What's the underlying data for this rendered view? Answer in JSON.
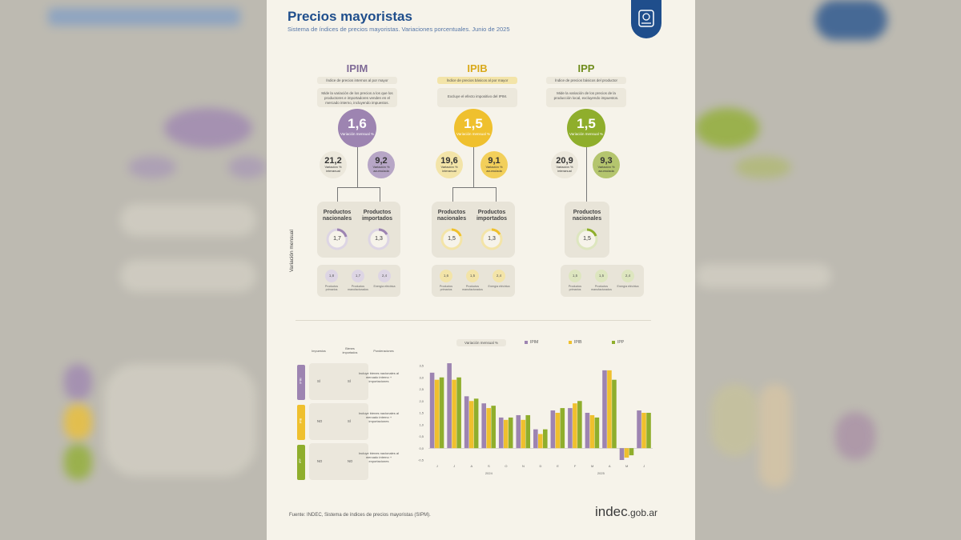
{
  "header": {
    "title": "Precios mayoristas",
    "subtitle": "Sistema de índices de precios mayoristas. Variaciones porcentuales. Junio de 2025"
  },
  "colors": {
    "ipim": "#9d84b1",
    "ipib": "#efc02e",
    "ipp": "#8fae2c",
    "brand": "#1f4e8c"
  },
  "indices": [
    {
      "name": "IPIM",
      "sub": "Índice de precios internos al por mayor",
      "desc": "Mide la variación de los precios a los que los productores e importadores venden en el mercado interno, incluyendo impuestos.",
      "monthly": "1,6",
      "monthly_label": "Variación mensual %",
      "yoy": "21,2",
      "yoy_label": "Variación % interanual",
      "acc": "9,2",
      "acc_label": "Variación % acumulada",
      "products": [
        {
          "label": "Productos nacionales",
          "value": "1,7"
        },
        {
          "label": "Productos importados",
          "value": "1,3"
        }
      ],
      "sub_items": [
        {
          "value": "1,8",
          "label": "Productos primarios"
        },
        {
          "value": "1,7",
          "label": "Productos manufacturados"
        },
        {
          "value": "2,4",
          "label": "Energía eléctrica"
        }
      ]
    },
    {
      "name": "IPIB",
      "sub": "Índice de precios básicos al por mayor",
      "desc": "Excluye el efecto impositivo del IPIM.",
      "monthly": "1,5",
      "monthly_label": "Variación mensual %",
      "yoy": "19,6",
      "yoy_label": "Variación % interanual",
      "acc": "9,1",
      "acc_label": "Variación % acumulada",
      "products": [
        {
          "label": "Productos nacionales",
          "value": "1,5"
        },
        {
          "label": "Productos importados",
          "value": "1,3"
        }
      ],
      "sub_items": [
        {
          "value": "1,6",
          "label": "Productos primarios"
        },
        {
          "value": "1,5",
          "label": "Productos manufacturados"
        },
        {
          "value": "2,4",
          "label": "Energía eléctrica"
        }
      ]
    },
    {
      "name": "IPP",
      "sub": "Índice de precios básicos del productor",
      "desc": "Mide la variación de los precios de la producción local, excluyendo impuestos.",
      "monthly": "1,5",
      "monthly_label": "Variación mensual %",
      "yoy": "20,9",
      "yoy_label": "Variación % interanual",
      "acc": "9,3",
      "acc_label": "Variación % acumulada",
      "products": [
        {
          "label": "Productos nacionales",
          "value": "1,5"
        }
      ],
      "sub_items": [
        {
          "value": "1,5",
          "label": "Productos primarios"
        },
        {
          "value": "1,5",
          "label": "Productos manufacturados"
        },
        {
          "value": "2,4",
          "label": "Energía eléctrica"
        }
      ]
    }
  ],
  "vertical_label": "Variación mensual",
  "table": {
    "headers": [
      "Impuestos",
      "Bienes importados",
      "Ponderaciones"
    ],
    "rows": [
      {
        "tag": "IPIM",
        "impuestos": "SÍ",
        "importados": "SÍ",
        "desc": "Incluye bienes nacionales al mercado interno + importaciones"
      },
      {
        "tag": "IPIB",
        "impuestos": "NO",
        "importados": "SÍ",
        "desc": "Incluye bienes nacionales al mercado interno + importaciones"
      },
      {
        "tag": "IPP",
        "impuestos": "NO",
        "importados": "NO",
        "desc": "Incluye bienes nacionales al mercado interno + exportaciones"
      }
    ]
  },
  "chart_data": {
    "type": "bar",
    "categories": [
      "J",
      "J",
      "A",
      "S",
      "O",
      "N",
      "D",
      "E",
      "F",
      "M",
      "A",
      "M",
      "J"
    ],
    "year_labels": [
      "2024",
      "2025"
    ],
    "y_ticks": [
      "-0,5",
      "0,0",
      "0,5",
      "1,0",
      "1,5",
      "2,0",
      "2,5",
      "3,0",
      "3,5"
    ],
    "ylim": [
      -0.5,
      3.5
    ],
    "legend_title": "Variación mensual %",
    "series": [
      {
        "name": "IPIM",
        "values": [
          3.2,
          3.6,
          2.2,
          1.9,
          1.3,
          1.4,
          0.8,
          1.6,
          1.7,
          1.5,
          3.3,
          -0.5,
          1.6
        ]
      },
      {
        "name": "IPIB",
        "values": [
          2.9,
          2.9,
          2.0,
          1.7,
          1.2,
          1.2,
          0.6,
          1.5,
          1.9,
          1.4,
          3.3,
          -0.4,
          1.5
        ]
      },
      {
        "name": "IPP",
        "values": [
          3.0,
          3.0,
          2.1,
          1.8,
          1.3,
          1.4,
          0.8,
          1.7,
          2.0,
          1.3,
          2.9,
          -0.3,
          1.5
        ]
      }
    ]
  },
  "footer": {
    "source": "Fuente: INDEC, Sistema de índices de precios mayoristas (SIPM).",
    "logo_main": "indec",
    "logo_suffix": ".gob.ar"
  }
}
